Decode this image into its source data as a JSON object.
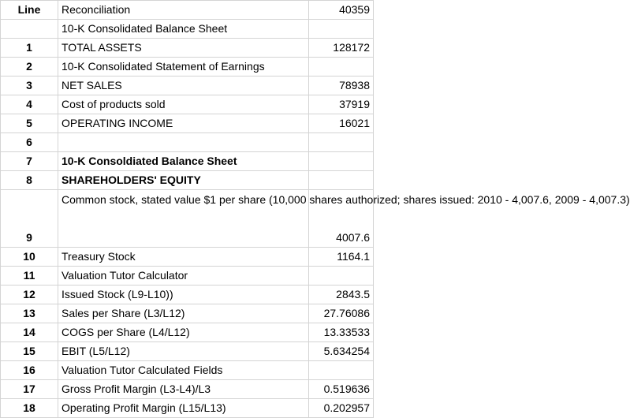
{
  "header": {
    "line": "Line",
    "desc": "Reconciliation",
    "value": "40359"
  },
  "rows": [
    {
      "line": "",
      "desc": "10-K Consolidated Balance Sheet",
      "value": ""
    },
    {
      "line": "1",
      "desc": "TOTAL ASSETS",
      "value": "128172"
    },
    {
      "line": "2",
      "desc": "10-K Consolidated Statement of Earnings",
      "value": ""
    },
    {
      "line": "3",
      "desc": "NET SALES",
      "value": "78938"
    },
    {
      "line": "4",
      "desc": "Cost of products sold",
      "value": "37919"
    },
    {
      "line": "5",
      "desc": "OPERATING INCOME",
      "value": "16021"
    },
    {
      "line": "6",
      "desc": "",
      "value": ""
    },
    {
      "line": "7",
      "desc": "10-K Consoldiated Balance Sheet",
      "value": ""
    },
    {
      "line": "8",
      "desc": "SHAREHOLDERS' EQUITY",
      "value": ""
    },
    {
      "line": "9",
      "desc": "Common stock, stated value  $1 per share (10,000 shares authorized; shares issued: 2010 - 4,007.6, 2009 - 4,007.3)",
      "value": "4007.6"
    },
    {
      "line": "10",
      "desc": "Treasury Stock",
      "value": "1164.1"
    },
    {
      "line": "11",
      "desc": "Valuation Tutor Calculator",
      "value": ""
    },
    {
      "line": "12",
      "desc": "Issued Stock (L9-L10))",
      "value": "2843.5"
    },
    {
      "line": "13",
      "desc": "Sales per Share (L3/L12)",
      "value": "27.76086"
    },
    {
      "line": "14",
      "desc": "COGS per Share (L4/L12)",
      "value": "13.33533"
    },
    {
      "line": "15",
      "desc": "EBIT (L5/L12)",
      "value": "5.634254"
    },
    {
      "line": "16",
      "desc": "Valuation Tutor Calculated Fields",
      "value": ""
    },
    {
      "line": "17",
      "desc": "Gross Profit Margin (L3-L4)/L3",
      "value": "0.519636"
    },
    {
      "line": "18",
      "desc": "Operating Profit Margin (L15/L13)",
      "value": "0.202957"
    }
  ],
  "colors": {
    "accent_red": "#e31b1b",
    "grid": "#d4d4d4"
  }
}
